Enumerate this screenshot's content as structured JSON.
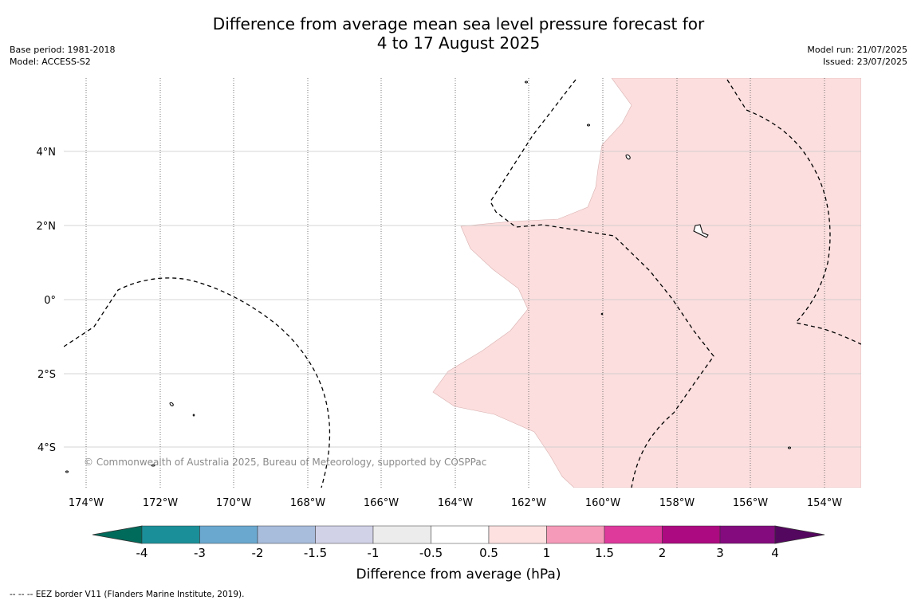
{
  "title": {
    "line1": "Difference from average mean sea level pressure forecast for",
    "line2": "4 to 17 August 2025"
  },
  "meta_left": {
    "base_period": "Base period: 1981-2018",
    "model": "Model: ACCESS-S2"
  },
  "meta_right": {
    "model_run": "Model run: 21/07/2025",
    "issued": "Issued: 23/07/2025"
  },
  "map": {
    "lat_labels": [
      "4°N",
      "2°N",
      "0°",
      "2°S",
      "4°S"
    ],
    "lon_labels": [
      "174°W",
      "172°W",
      "170°W",
      "168°W",
      "166°W",
      "164°W",
      "162°W",
      "160°W",
      "158°W",
      "156°W",
      "154°W"
    ],
    "shaded_category": "0.5 to 1",
    "shaded_color": "#fcdede",
    "copyright": "© Commonwealth of Australia 2025, Bureau of Meteorology, supported by COSPPac"
  },
  "colorbar": {
    "title": "Difference from average (hPa)",
    "tick_labels": [
      "-4",
      "-3",
      "-2",
      "-1.5",
      "-1",
      "-0.5",
      "0.5",
      "1",
      "1.5",
      "2",
      "3",
      "4"
    ],
    "colors": [
      "#006b5b",
      "#1b8f99",
      "#6aa8d0",
      "#a8bcdc",
      "#d1d1e8",
      "#ececec",
      "#ffffff",
      "#fde1e1",
      "#f59ab8",
      "#dd3a9c",
      "#ac0a80",
      "#830b7e",
      "#54075f"
    ]
  },
  "footer": "--  --  -- EEZ border V11 (Flanders Marine Institute, 2019)."
}
